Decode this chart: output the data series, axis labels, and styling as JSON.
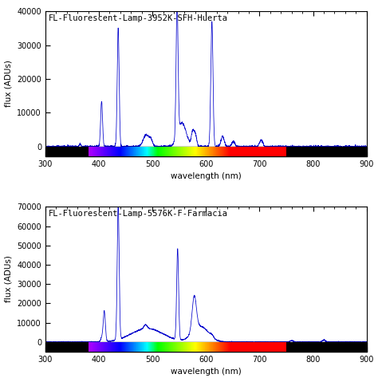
{
  "title1": "FL-Fluorescent-Lamp-3952K-SFH-Huerta",
  "title2": "FL-Fluorescent-Lamp-5576K-F-Farmacia",
  "xlabel": "wavelength (nm)",
  "ylabel": "flux (ADUs)",
  "xlim": [
    300,
    900
  ],
  "ylim1_top": 40000,
  "ylim2_top": 70000,
  "yticks1": [
    0,
    10000,
    20000,
    30000,
    40000
  ],
  "yticks2": [
    0,
    10000,
    20000,
    30000,
    40000,
    50000,
    60000,
    70000
  ],
  "line_color": "#0000cc",
  "background_color": "#ffffff",
  "title_fontsize": 7.5,
  "tick_fontsize": 7,
  "label_fontsize": 7.5
}
